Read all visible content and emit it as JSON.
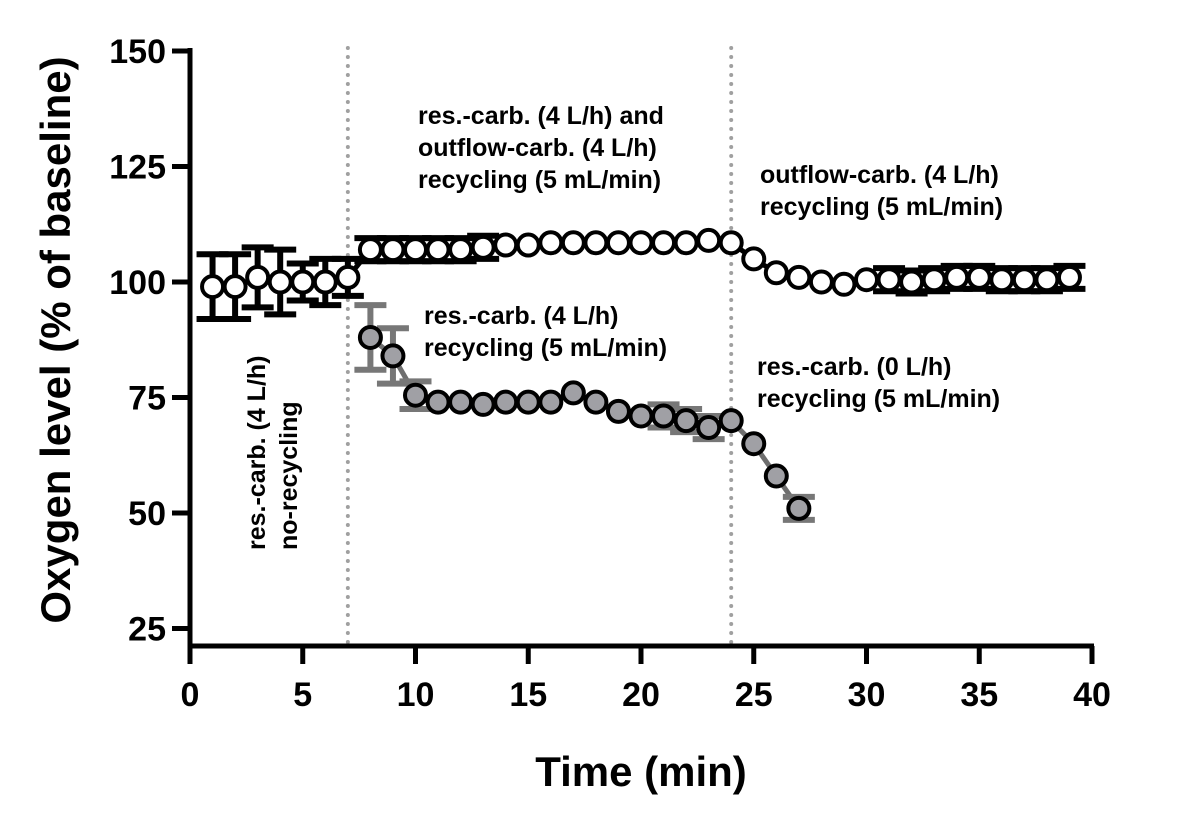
{
  "chart_data": {
    "type": "line",
    "title": "",
    "xlabel": "Time (min)",
    "ylabel": "Oxygen level (% of baseline)",
    "xlim": [
      0,
      40
    ],
    "ylim": [
      20,
      150
    ],
    "xticks": [
      0,
      5,
      10,
      15,
      20,
      25,
      30,
      35,
      40
    ],
    "yticks": [
      25,
      50,
      75,
      100,
      125,
      150
    ],
    "grid": false,
    "vlines": [
      7,
      24
    ],
    "series": [
      {
        "name": "outflow-carb. series",
        "marker": "open-circle",
        "color": "#000000",
        "x": [
          1,
          2,
          3,
          4,
          5,
          6,
          7,
          8,
          9,
          10,
          11,
          12,
          13,
          14,
          15,
          16,
          17,
          18,
          19,
          20,
          21,
          22,
          23,
          24,
          25,
          26,
          27,
          28,
          29,
          30,
          31,
          32,
          33,
          34,
          35,
          36,
          37,
          38,
          39
        ],
        "y": [
          99,
          99,
          101,
          100,
          100,
          100,
          101,
          107,
          107,
          107,
          107,
          107,
          107.5,
          108,
          108,
          108.5,
          108.5,
          108.5,
          108.5,
          108.5,
          108.5,
          108.5,
          109,
          108.5,
          105,
          102,
          101,
          100,
          99.5,
          100.5,
          100.5,
          100,
          100.5,
          101,
          101,
          100.5,
          100.5,
          100.5,
          101
        ],
        "err": [
          7,
          7,
          6.5,
          7,
          4,
          5,
          4,
          2.5,
          2.5,
          2.5,
          2.5,
          2.5,
          2.5,
          0,
          0,
          0,
          0,
          0,
          0,
          0,
          0,
          0,
          0,
          0,
          0,
          0,
          0,
          0,
          0,
          0,
          2.5,
          2.5,
          2.5,
          2.5,
          2.5,
          2.5,
          2.5,
          2.5,
          2.5
        ]
      },
      {
        "name": "res.-carb. series",
        "marker": "filled-circle",
        "color": "#a0a0a5",
        "x": [
          8,
          9,
          10,
          11,
          12,
          13,
          14,
          15,
          16,
          17,
          18,
          19,
          20,
          21,
          22,
          23,
          24,
          25,
          26,
          27
        ],
        "y": [
          88,
          84,
          75.5,
          74,
          74,
          73.5,
          74,
          74,
          74,
          76,
          74,
          72,
          71,
          71,
          70,
          68.5,
          70,
          65,
          58,
          51
        ],
        "err": [
          7,
          6,
          3,
          0,
          0,
          0,
          0,
          0,
          0,
          0,
          0,
          0,
          0,
          2.5,
          2.5,
          2.5,
          0,
          0,
          0,
          2.5
        ]
      }
    ],
    "annotations": [
      {
        "lines": [
          "res.-carb. (4 L/h)",
          "no-recycling"
        ],
        "rotated": true
      },
      {
        "lines": [
          "res.-carb. (4 L/h) and",
          "outflow-carb. (4 L/h)",
          "recycling (5 mL/min)"
        ]
      },
      {
        "lines": [
          "outflow-carb. (4 L/h)",
          "recycling (5 mL/min)"
        ]
      },
      {
        "lines": [
          "res.-carb. (4 L/h)",
          "recycling (5 mL/min)"
        ]
      },
      {
        "lines": [
          "res.-carb. (0 L/h)",
          "recycling (5 mL/min)"
        ]
      }
    ]
  }
}
